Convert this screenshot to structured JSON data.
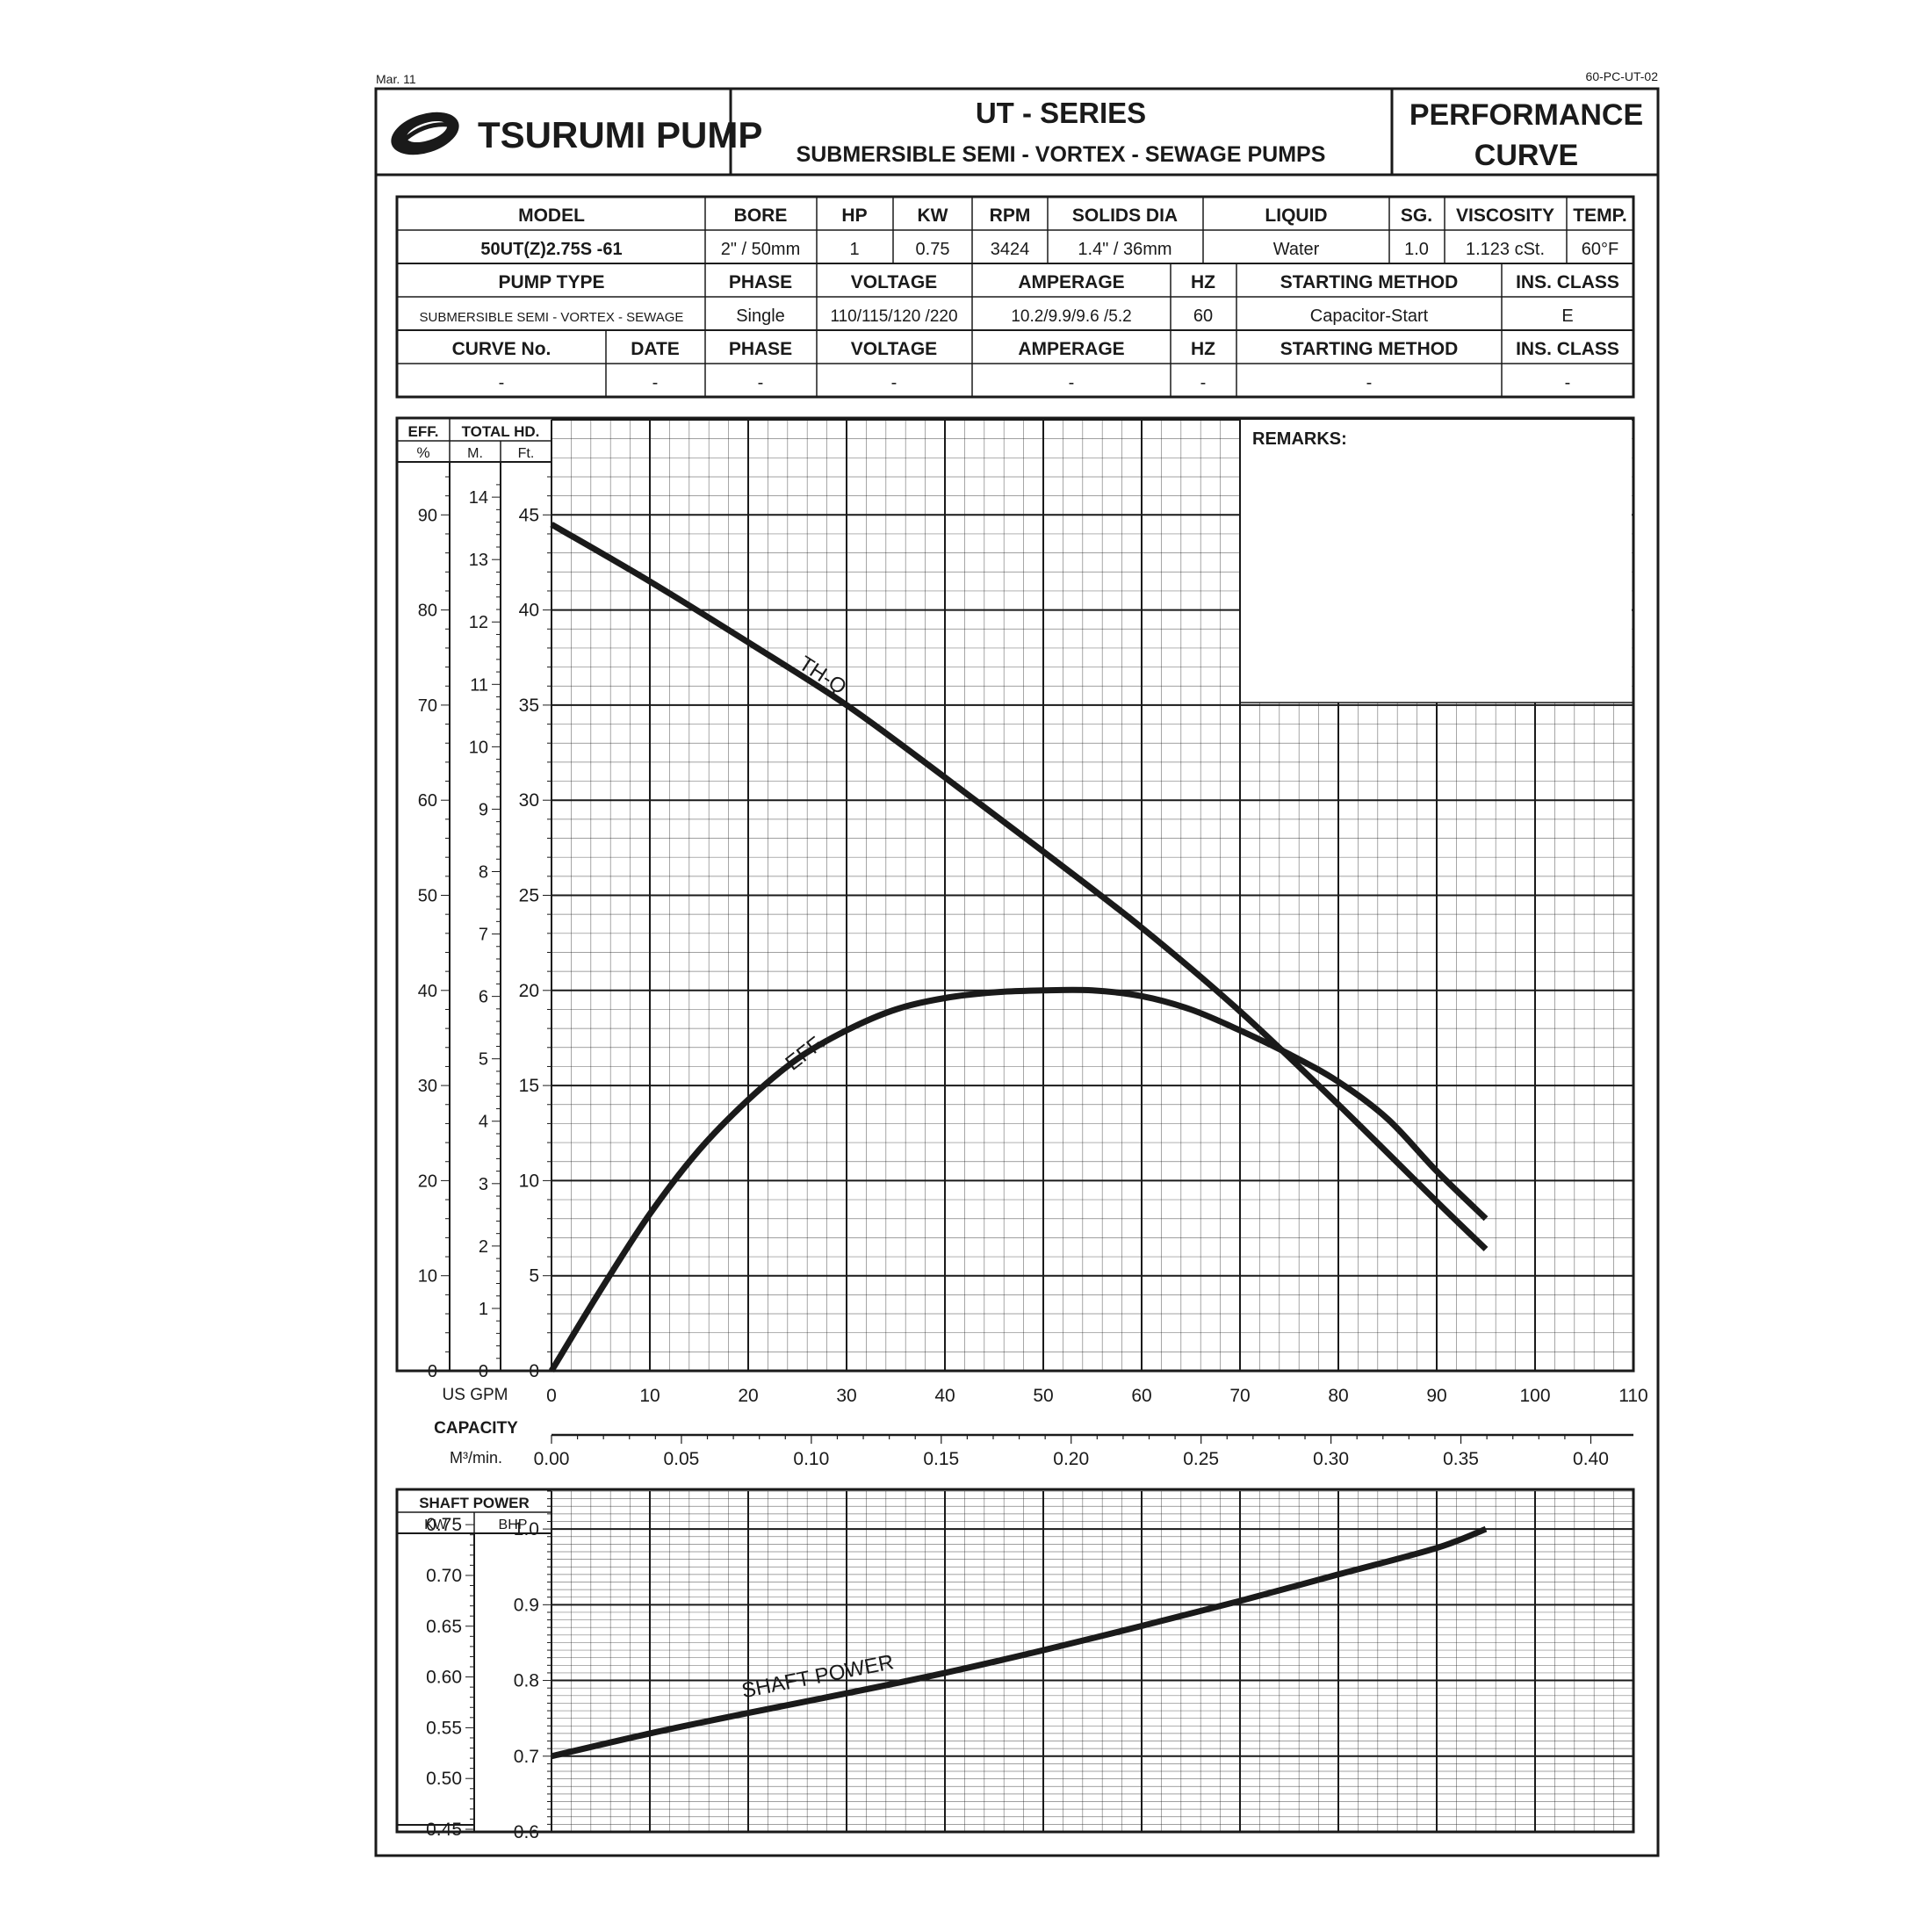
{
  "header": {
    "date_code": "Mar. 11",
    "doc_code": "60-PC-UT-02",
    "brand": "TSURUMI PUMP",
    "series": "UT - SERIES",
    "subtitle": "SUBMERSIBLE SEMI - VORTEX - SEWAGE PUMPS",
    "doc_type_line1": "PERFORMANCE",
    "doc_type_line2": "CURVE"
  },
  "spec_table": {
    "row1_headers": [
      "MODEL",
      "BORE",
      "HP",
      "KW",
      "RPM",
      "SOLIDS DIA",
      "LIQUID",
      "SG.",
      "VISCOSITY",
      "TEMP."
    ],
    "row1_values": [
      "50UT(Z)2.75S -61",
      "2\" / 50mm",
      "1",
      "0.75",
      "3424",
      "1.4\" / 36mm",
      "Water",
      "1.0",
      "1.123 cSt.",
      "60°F"
    ],
    "row2_headers": [
      "PUMP TYPE",
      "PHASE",
      "VOLTAGE",
      "AMPERAGE",
      "HZ",
      "STARTING METHOD",
      "INS. CLASS"
    ],
    "row2_values": [
      "SUBMERSIBLE SEMI - VORTEX - SEWAGE",
      "Single",
      "110/115/120 /220",
      "10.2/9.9/9.6 /5.2",
      "60",
      "Capacitor-Start",
      "E"
    ],
    "row3_headers": [
      "CURVE No.",
      "DATE",
      "PHASE",
      "VOLTAGE",
      "AMPERAGE",
      "HZ",
      "STARTING METHOD",
      "INS. CLASS"
    ],
    "row3_values": [
      "-",
      "-",
      "-",
      "-",
      "-",
      "-",
      "-",
      "-"
    ]
  },
  "remarks_label": "REMARKS:",
  "chart_data": [
    {
      "type": "line",
      "title": "",
      "axis_headers": {
        "eff": "EFF.",
        "eff_unit": "%",
        "head": "TOTAL HD.",
        "head_m": "M.",
        "head_ft": "Ft."
      },
      "x_label": "US GPM",
      "capacity_label": "CAPACITY",
      "m3_label": "M³/min.",
      "xlim": [
        0,
        110
      ],
      "x_ticks": [
        "0",
        "10",
        "20",
        "30",
        "40",
        "50",
        "60",
        "70",
        "80",
        "90",
        "100",
        "110"
      ],
      "m3_ticks": [
        "0.00",
        "0.05",
        "0.10",
        "0.15",
        "0.20",
        "0.25",
        "0.30",
        "0.35",
        "0.40"
      ],
      "ft_ylim": [
        0,
        50
      ],
      "ft_ticks": [
        "0",
        "5",
        "10",
        "15",
        "20",
        "25",
        "30",
        "35",
        "40",
        "45"
      ],
      "m_ticks": [
        "0",
        "1",
        "2",
        "3",
        "4",
        "5",
        "6",
        "7",
        "8",
        "9",
        "10",
        "11",
        "12",
        "13",
        "14"
      ],
      "eff_ticks": [
        "0",
        "10",
        "20",
        "30",
        "40",
        "50",
        "60",
        "70",
        "80",
        "90"
      ],
      "grid": true,
      "series": [
        {
          "name": "TH-Q",
          "axis": "ft",
          "x": [
            0,
            10,
            20,
            30,
            40,
            50,
            60,
            70,
            80,
            90,
            95
          ],
          "y": [
            44.5,
            41.5,
            38.3,
            35.0,
            31.2,
            27.3,
            23.3,
            18.9,
            14.0,
            8.9,
            6.4
          ]
        },
        {
          "name": "EFF.",
          "axis": "eff",
          "x": [
            0,
            5,
            10,
            15,
            20,
            25,
            30,
            35,
            40,
            45,
            50,
            55,
            60,
            65,
            70,
            75,
            80,
            85,
            90,
            95
          ],
          "y": [
            0,
            8.5,
            16.5,
            23.2,
            28.5,
            32.8,
            35.8,
            38.0,
            39.2,
            39.8,
            40.0,
            40.0,
            39.4,
            38.0,
            35.8,
            33.3,
            30.4,
            26.5,
            21.0,
            16.0
          ]
        }
      ]
    },
    {
      "type": "line",
      "title": "",
      "axis_header": "SHAFT POWER",
      "kw_label": "KW",
      "bhp_label": "BHP",
      "x_label": "US GPM",
      "xlim": [
        0,
        110
      ],
      "bhp_ylim": [
        0.6,
        1.05
      ],
      "bhp_ticks": [
        "0.6",
        "0.7",
        "0.8",
        "0.9",
        "1.0"
      ],
      "kw_ticks": [
        "0.45",
        "0.50",
        "0.55",
        "0.60",
        "0.65",
        "0.70",
        "0.75"
      ],
      "grid": true,
      "series": [
        {
          "name": "SHAFT POWER",
          "axis": "bhp",
          "x": [
            0,
            10,
            20,
            30,
            40,
            50,
            60,
            70,
            80,
            90,
            95
          ],
          "y": [
            0.7,
            0.73,
            0.757,
            0.783,
            0.81,
            0.84,
            0.872,
            0.905,
            0.94,
            0.975,
            1.0
          ]
        }
      ]
    }
  ]
}
